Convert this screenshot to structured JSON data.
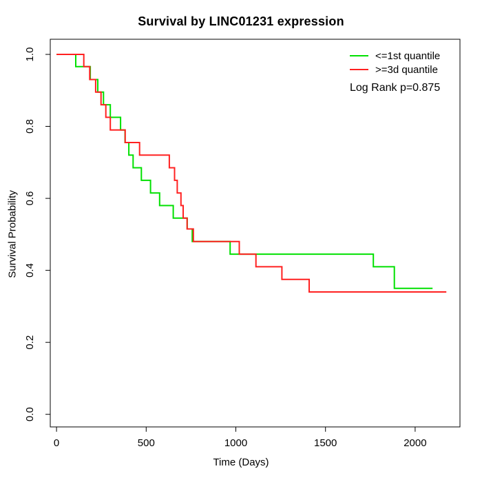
{
  "title": "Survival by LINC01231 expression",
  "chart_data": {
    "type": "line",
    "subtype": "kaplan_meier_survival_step",
    "title": "Survival by LINC01231 expression",
    "xlabel": "Time (Days)",
    "ylabel": "Survival Probability",
    "xlim": [
      -35,
      2250
    ],
    "ylim": [
      -0.035,
      1.042
    ],
    "xticks": [
      0,
      500,
      1000,
      1500,
      2000
    ],
    "xtick_labels": [
      "0",
      "500",
      "1000",
      "1500",
      "2000"
    ],
    "yticks": [
      0,
      0.2,
      0.4,
      0.6,
      0.8,
      1.0
    ],
    "ytick_labels": [
      "0.0",
      "0.2",
      "0.4",
      "0.6",
      "0.8",
      "1.0"
    ],
    "grid": false,
    "boxed": true,
    "legend_position": "top-right",
    "annotation": "Log Rank p=0.875",
    "legend": {
      "items": [
        {
          "label": "<=1st quantile",
          "color": "#00e000"
        },
        {
          "label": ">=3d quantile",
          "color": "#ff2020"
        }
      ]
    },
    "series": [
      {
        "name": "<=1st quantile",
        "slug": "le-1st-quantile",
        "color": "#00e000",
        "end_time": 2097,
        "steps": [
          [
            0,
            1.0
          ],
          [
            107,
            0.966
          ],
          [
            188,
            0.93
          ],
          [
            230,
            0.895
          ],
          [
            262,
            0.86
          ],
          [
            300,
            0.825
          ],
          [
            357,
            0.79
          ],
          [
            382,
            0.755
          ],
          [
            403,
            0.72
          ],
          [
            427,
            0.685
          ],
          [
            473,
            0.65
          ],
          [
            524,
            0.615
          ],
          [
            575,
            0.58
          ],
          [
            651,
            0.545
          ],
          [
            729,
            0.515
          ],
          [
            757,
            0.48
          ],
          [
            968,
            0.445
          ],
          [
            1767,
            0.41
          ],
          [
            1884,
            0.35
          ]
        ]
      },
      {
        "name": ">=3d quantile",
        "slug": "ge-3d-quantile",
        "color": "#ff2020",
        "end_time": 2174,
        "steps": [
          [
            0,
            1.0
          ],
          [
            152,
            0.966
          ],
          [
            185,
            0.93
          ],
          [
            218,
            0.895
          ],
          [
            248,
            0.86
          ],
          [
            275,
            0.825
          ],
          [
            300,
            0.79
          ],
          [
            383,
            0.755
          ],
          [
            463,
            0.72
          ],
          [
            629,
            0.685
          ],
          [
            658,
            0.65
          ],
          [
            673,
            0.615
          ],
          [
            694,
            0.58
          ],
          [
            706,
            0.545
          ],
          [
            728,
            0.515
          ],
          [
            763,
            0.48
          ],
          [
            1019,
            0.445
          ],
          [
            1112,
            0.41
          ],
          [
            1257,
            0.375
          ],
          [
            1409,
            0.34
          ]
        ]
      }
    ]
  }
}
